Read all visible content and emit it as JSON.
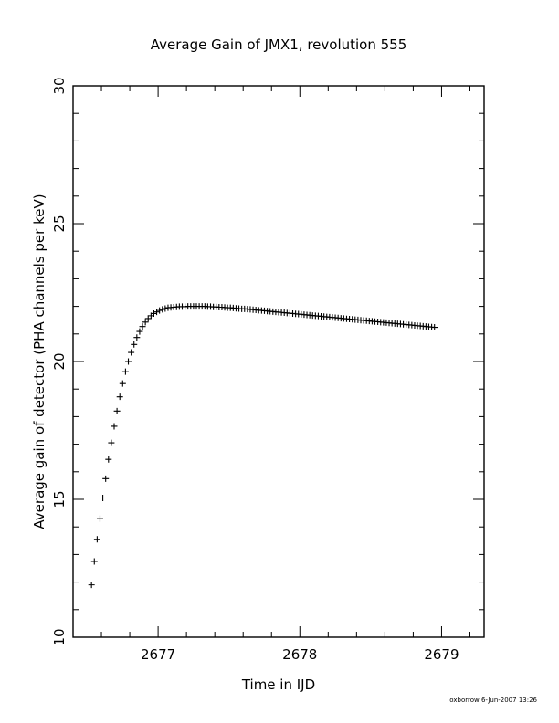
{
  "chart_data": {
    "type": "scatter",
    "title": "Average Gain of JMX1, revolution 555",
    "xlabel": "Time in IJD",
    "ylabel": "Average gain of detector (PHA channels per keV)",
    "xlim": [
      2676.4,
      2679.3
    ],
    "ylim": [
      10,
      30
    ],
    "x_ticks": [
      2677,
      2678,
      2679
    ],
    "y_ticks": [
      10,
      15,
      20,
      25,
      30
    ],
    "marker": "plus",
    "grid": false,
    "series": [
      {
        "x": [
          2676.53,
          2676.55,
          2676.57,
          2676.59,
          2676.61,
          2676.63,
          2676.65,
          2676.67,
          2676.69,
          2676.71,
          2676.73,
          2676.75,
          2676.77,
          2676.79,
          2676.81,
          2676.83,
          2676.85,
          2676.87,
          2676.89,
          2676.91,
          2676.93,
          2676.95,
          2676.97,
          2676.99,
          2677.01,
          2677.03,
          2677.05,
          2677.07,
          2677.09,
          2677.11,
          2677.13,
          2677.15,
          2677.17,
          2677.19,
          2677.21,
          2677.23,
          2677.25,
          2677.27,
          2677.29,
          2677.31,
          2677.33,
          2677.35,
          2677.37,
          2677.39,
          2677.41,
          2677.43,
          2677.45,
          2677.47,
          2677.49,
          2677.51,
          2677.53,
          2677.55,
          2677.57,
          2677.59,
          2677.61,
          2677.63,
          2677.65,
          2677.67,
          2677.69,
          2677.71,
          2677.73,
          2677.75,
          2677.77,
          2677.79,
          2677.81,
          2677.83,
          2677.85,
          2677.87,
          2677.89,
          2677.91,
          2677.93,
          2677.95,
          2677.97,
          2677.99,
          2678.01,
          2678.03,
          2678.05,
          2678.07,
          2678.09,
          2678.11,
          2678.13,
          2678.15,
          2678.17,
          2678.19,
          2678.21,
          2678.23,
          2678.25,
          2678.27,
          2678.29,
          2678.31,
          2678.33,
          2678.35,
          2678.37,
          2678.39,
          2678.41,
          2678.43,
          2678.45,
          2678.47,
          2678.49,
          2678.51,
          2678.53,
          2678.55,
          2678.57,
          2678.59,
          2678.61,
          2678.63,
          2678.65,
          2678.67,
          2678.69,
          2678.71,
          2678.73,
          2678.75,
          2678.77,
          2678.79,
          2678.81,
          2678.83,
          2678.85,
          2678.87,
          2678.89,
          2678.91,
          2678.93,
          2678.95
        ],
        "y": [
          11.9,
          12.75,
          13.55,
          14.3,
          15.05,
          15.75,
          16.45,
          17.05,
          17.65,
          18.2,
          18.72,
          19.2,
          19.63,
          20.0,
          20.33,
          20.62,
          20.87,
          21.09,
          21.27,
          21.43,
          21.56,
          21.66,
          21.74,
          21.8,
          21.85,
          21.89,
          21.92,
          21.95,
          21.96,
          21.97,
          21.98,
          21.99,
          21.99,
          21.99,
          22.0,
          22.0,
          22.0,
          22.0,
          22.0,
          22.0,
          22.0,
          21.99,
          21.99,
          21.98,
          21.98,
          21.97,
          21.97,
          21.96,
          21.95,
          21.95,
          21.94,
          21.93,
          21.92,
          21.91,
          21.91,
          21.9,
          21.89,
          21.88,
          21.87,
          21.86,
          21.85,
          21.84,
          21.83,
          21.82,
          21.81,
          21.8,
          21.79,
          21.78,
          21.77,
          21.76,
          21.75,
          21.74,
          21.73,
          21.72,
          21.71,
          21.7,
          21.69,
          21.68,
          21.67,
          21.66,
          21.65,
          21.64,
          21.63,
          21.62,
          21.61,
          21.6,
          21.59,
          21.58,
          21.57,
          21.56,
          21.55,
          21.54,
          21.53,
          21.52,
          21.51,
          21.5,
          21.49,
          21.48,
          21.47,
          21.46,
          21.45,
          21.44,
          21.43,
          21.42,
          21.41,
          21.4,
          21.39,
          21.38,
          21.37,
          21.36,
          21.35,
          21.34,
          21.33,
          21.32,
          21.31,
          21.3,
          21.29,
          21.28,
          21.27,
          21.26,
          21.25,
          21.24
        ]
      }
    ]
  },
  "footer": {
    "credit": "oxborrow  6-Jun-2007 13:26"
  }
}
